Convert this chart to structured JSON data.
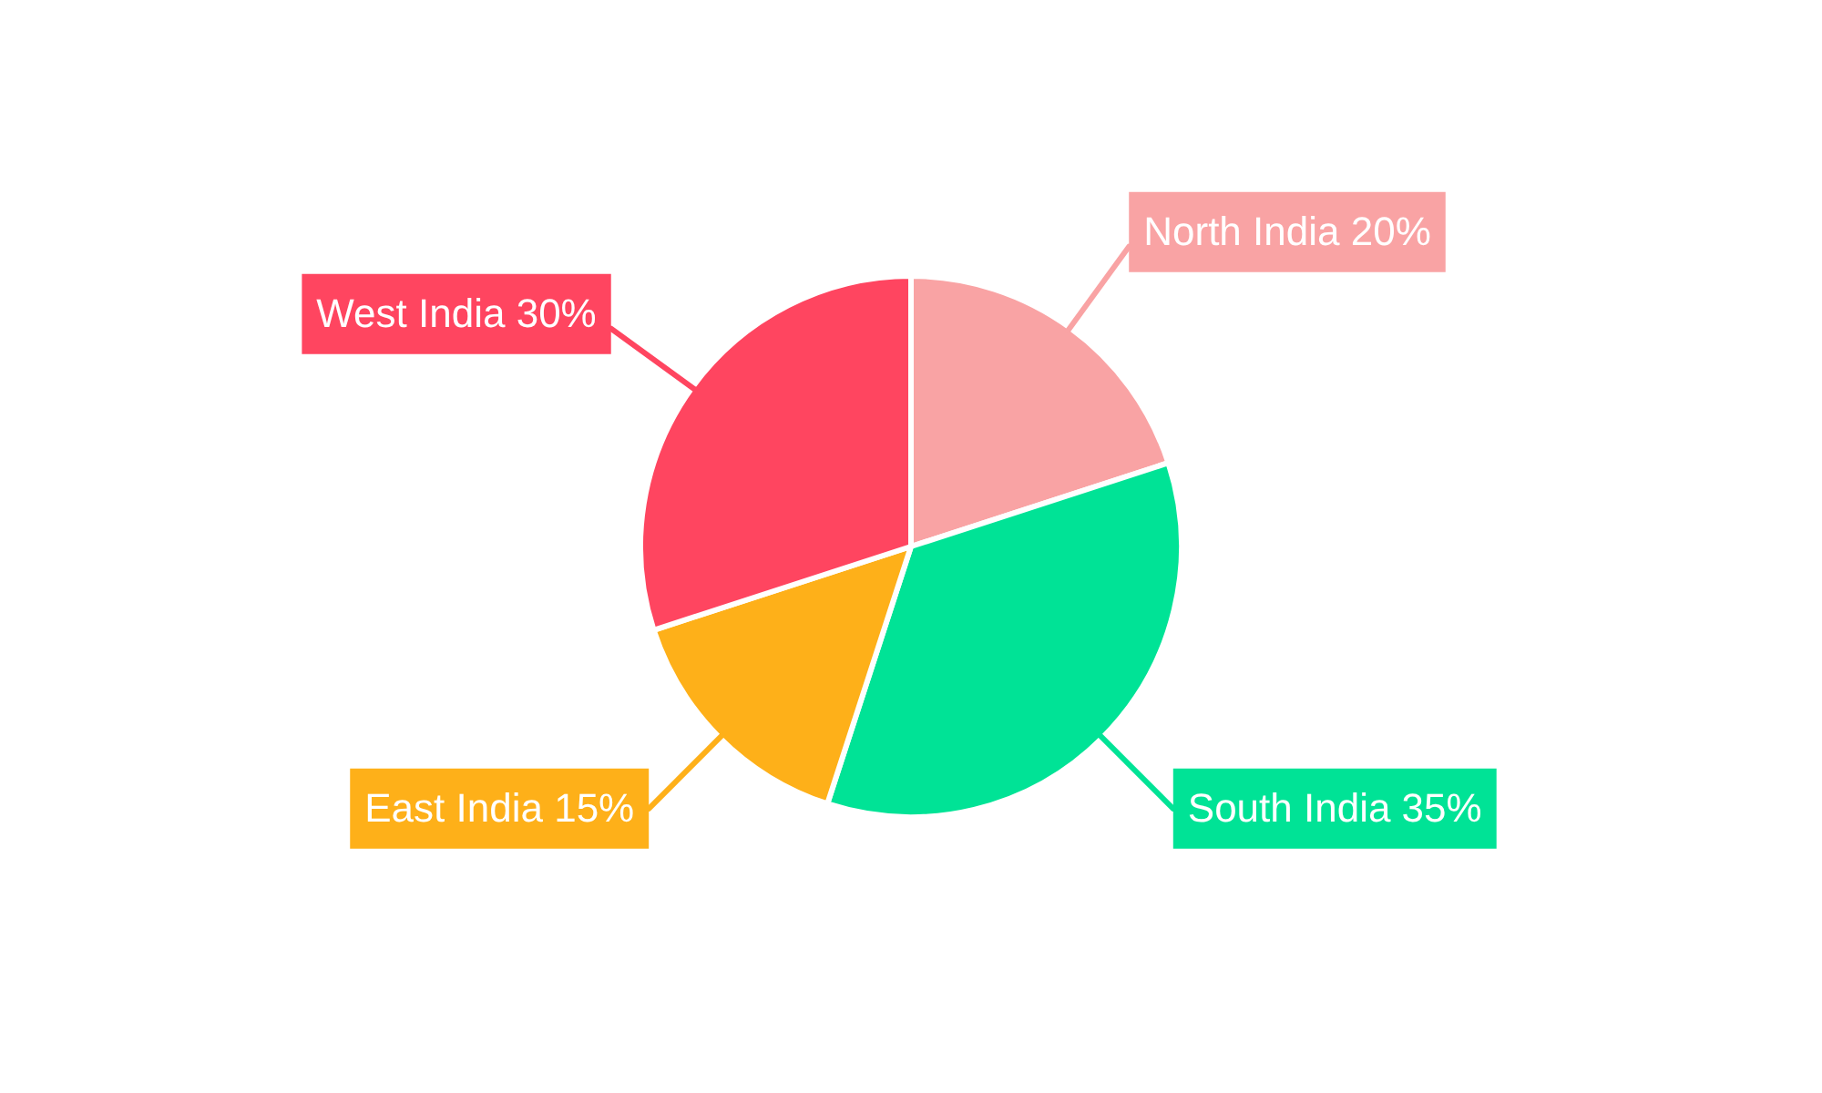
{
  "chart_data": {
    "type": "pie",
    "categories": [
      "North India",
      "South India",
      "East India",
      "West India"
    ],
    "values": [
      20,
      35,
      15,
      30
    ],
    "value_labels": [
      "20%",
      "35%",
      "15%",
      "30%"
    ],
    "colors": [
      "#f9a3a4",
      "#00e396",
      "#feb019",
      "#ff4560"
    ],
    "legend": false
  }
}
